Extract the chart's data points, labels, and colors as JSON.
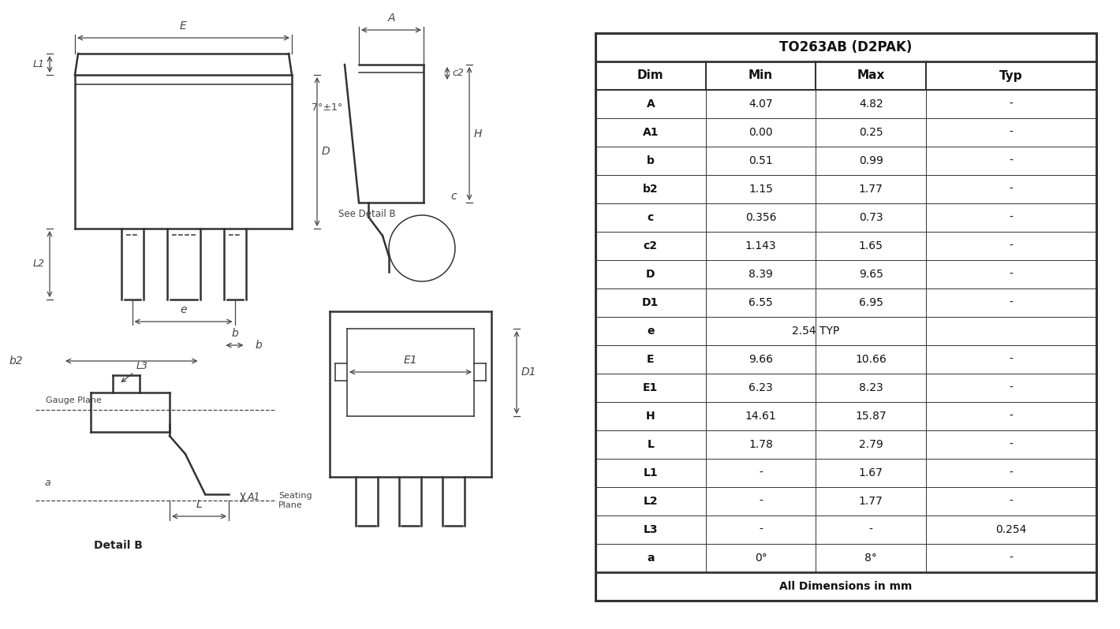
{
  "title": "TO263AB (D2PAK)",
  "table_header": [
    "Dim",
    "Min",
    "Max",
    "Typ"
  ],
  "table_data": [
    [
      "A",
      "4.07",
      "4.82",
      "-"
    ],
    [
      "A1",
      "0.00",
      "0.25",
      "-"
    ],
    [
      "b",
      "0.51",
      "0.99",
      "-"
    ],
    [
      "b2",
      "1.15",
      "1.77",
      "-"
    ],
    [
      "c",
      "0.356",
      "0.73",
      "-"
    ],
    [
      "c2",
      "1.143",
      "1.65",
      "-"
    ],
    [
      "D",
      "8.39",
      "9.65",
      "-"
    ],
    [
      "D1",
      "6.55",
      "6.95",
      "-"
    ],
    [
      "e",
      "",
      "2.54 TYP",
      ""
    ],
    [
      "E",
      "9.66",
      "10.66",
      "-"
    ],
    [
      "E1",
      "6.23",
      "8.23",
      "-"
    ],
    [
      "H",
      "14.61",
      "15.87",
      "-"
    ],
    [
      "L",
      "1.78",
      "2.79",
      "-"
    ],
    [
      "L1",
      "-",
      "1.67",
      "-"
    ],
    [
      "L2",
      "-",
      "1.77",
      "-"
    ],
    [
      "L3",
      "-",
      "-",
      "0.254"
    ],
    [
      "a",
      "0°",
      "8°",
      "-"
    ]
  ],
  "footer": "All Dimensions in mm",
  "line_color": "#333333",
  "dim_color": "#444444"
}
